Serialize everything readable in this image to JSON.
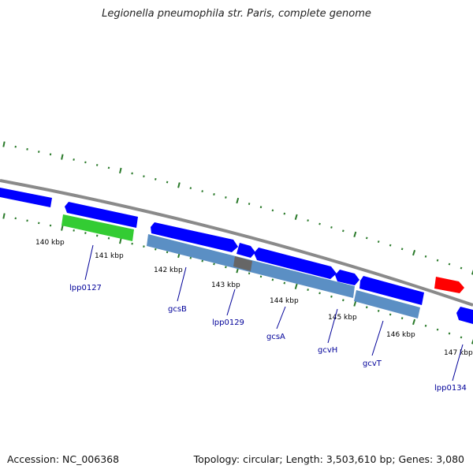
{
  "header": {
    "title": "Legionella pneumophila str. Paris, complete genome"
  },
  "footer": {
    "accession": "Accession: NC_006368",
    "summary": "Topology: circular; Length: 3,503,610 bp; Genes: 3,080"
  },
  "colors": {
    "backbone": "#8a8a8a",
    "forward_cds": "#0000ff",
    "reverse_cds": "#0000ff",
    "rrna_feature": "#33cc33",
    "highlight_feature": "#ff0000",
    "operon_bar": "#5b8fc4",
    "operon_dark_segment": "#666666",
    "tick_marks": "#2a7a2a",
    "gene_labels": "#000099"
  },
  "ruler": {
    "labels": [
      "140 kbp",
      "141 kbp",
      "142 kbp",
      "143 kbp",
      "144 kbp",
      "145 kbp",
      "146 kbp",
      "147 kbp"
    ]
  },
  "genes": [
    {
      "name": "lpp0127"
    },
    {
      "name": "gcsB"
    },
    {
      "name": "lpp0129"
    },
    {
      "name": "gcsA"
    },
    {
      "name": "gcvH"
    },
    {
      "name": "gcvT"
    },
    {
      "name": "lpp0134"
    }
  ]
}
